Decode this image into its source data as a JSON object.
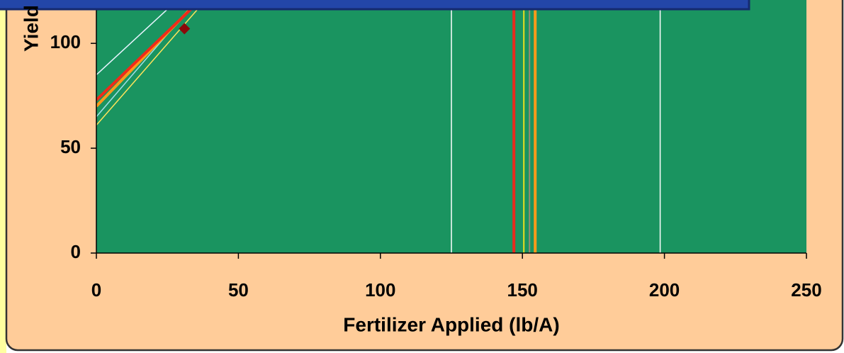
{
  "chart_data": {
    "type": "line",
    "xlabel": "Fertilizer Applied (lb/A)",
    "ylabel": "Yield",
    "xlim": [
      0,
      250
    ],
    "ylim": [
      0,
      120
    ],
    "xticks": [
      0,
      50,
      100,
      150,
      200,
      250
    ],
    "yticks": [
      0,
      50,
      100
    ],
    "series": [
      {
        "color": "#e8f4ff",
        "x": [
          0,
          40
        ],
        "values": [
          85,
          135
        ]
      },
      {
        "color": "#9fe0e8",
        "x": [
          0,
          40
        ],
        "values": [
          65,
          128
        ]
      },
      {
        "color": "#ffe45a",
        "x": [
          0,
          40
        ],
        "values": [
          61,
          123
        ]
      },
      {
        "color": "#ff9a1a",
        "x": [
          0,
          40
        ],
        "values": [
          70,
          126
        ]
      },
      {
        "color": "#f02a1a",
        "x": [
          0,
          40
        ],
        "values": [
          73,
          125
        ]
      }
    ],
    "vlines": [
      {
        "x": 125,
        "color": "#ffffff"
      },
      {
        "x": 198.5,
        "color": "#ffffff"
      },
      {
        "x": 147,
        "color": "#e62b1e"
      },
      {
        "x": 150.5,
        "color": "#e8e020"
      },
      {
        "x": 152.5,
        "color": "#9a8a70"
      },
      {
        "x": 154.5,
        "color": "#ff9a1a"
      }
    ],
    "points": [
      {
        "x": 31,
        "y": 107,
        "color": "#8b0a0a"
      }
    ],
    "plot_color": "#1a9460",
    "background": "#ffcc99"
  }
}
